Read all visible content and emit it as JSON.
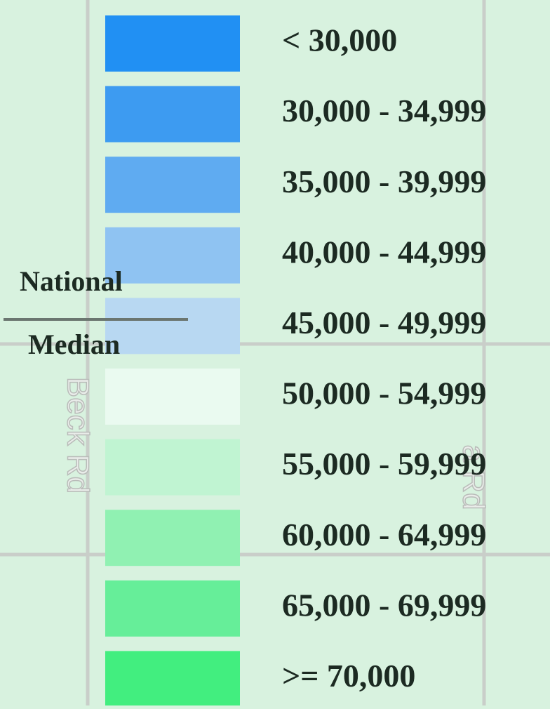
{
  "legend": {
    "items": [
      {
        "label": "< 30,000",
        "color": "#2190f3"
      },
      {
        "label": "30,000 - 34,999",
        "color": "#3d9bf1"
      },
      {
        "label": "35,000 - 39,999",
        "color": "#5fabf1"
      },
      {
        "label": "40,000 - 44,999",
        "color": "#8fc3f2"
      },
      {
        "label": "45,000 - 49,999",
        "color": "#b8d8f2"
      },
      {
        "label": "50,000 - 54,999",
        "color": "#eafaf0"
      },
      {
        "label": "55,000 - 59,999",
        "color": "#c0f4d2"
      },
      {
        "label": "60,000 - 64,999",
        "color": "#90f1b2"
      },
      {
        "label": "65,000 - 69,999",
        "color": "#66ee99"
      },
      {
        "label": ">= 70,000",
        "color": "#42ee7f"
      }
    ],
    "median_marker": {
      "top": "National",
      "bottom": "Median"
    }
  },
  "roads": [
    "Beck Rd",
    "a Rd"
  ]
}
